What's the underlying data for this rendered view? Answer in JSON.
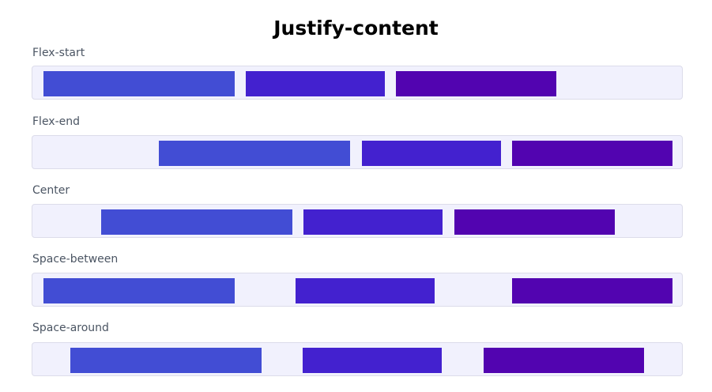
{
  "title": "Justify-content",
  "colors": {
    "item_1": "#424dd4",
    "item_2": "#4321cf",
    "item_3": "#5204b0",
    "container_bg": "#f1f1fd",
    "container_border": "#dcdcea"
  },
  "rows": [
    {
      "label": "Flex-start"
    },
    {
      "label": "Flex-end"
    },
    {
      "label": "Center"
    },
    {
      "label": "Space-between"
    },
    {
      "label": "Space-around"
    }
  ]
}
